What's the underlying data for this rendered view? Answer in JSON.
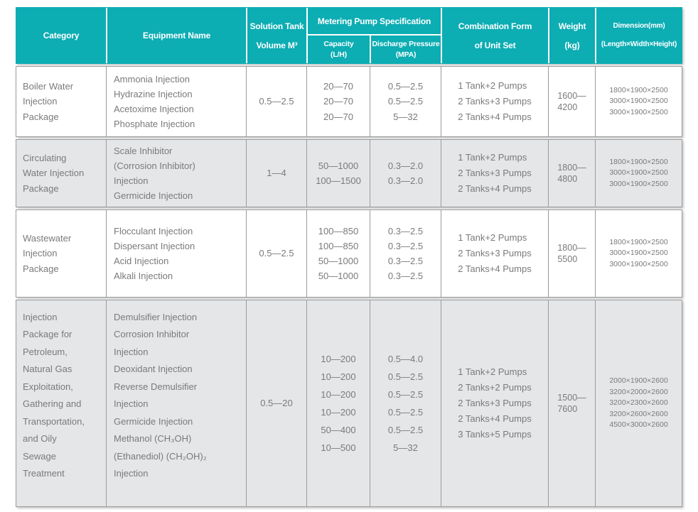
{
  "colors": {
    "header_bg": "#0cadb3",
    "header_text": "#ffffff",
    "alt_row_bg": "#e5e6e8",
    "border": "#9b9b9b",
    "body_text": "#7a7a7a"
  },
  "table": {
    "header": {
      "category": "Category",
      "equipment_name": "Equipment Name",
      "solution_tank_line1": "Solution Tank",
      "solution_tank_line2": "Volume M³",
      "pump_spec": "Metering Pump Specification",
      "capacity_line1": "Capacity",
      "capacity_line2": "(L/H)",
      "pressure_line1": "Discharge Pressure",
      "pressure_line2": "(MPA)",
      "combination_line1": "Combination Form",
      "combination_line2": "of Unit Set",
      "weight_line1": "Weight",
      "weight_line2": "(kg)",
      "dimension_line1": "Dimension(mm)",
      "dimension_line2": "(Length×Width×Height)"
    },
    "rows": [
      {
        "category_lines": [
          "Boiler Water",
          "Injection",
          "Package"
        ],
        "equipment_lines": [
          "Ammonia Injection",
          "Hydrazine Injection",
          "Acetoxime Injection",
          "Phosphate Injection"
        ],
        "tank_volume": "0.5—2.5",
        "capacity_lines": [
          "20—70",
          "20—70",
          "20—70"
        ],
        "pressure_lines": [
          "0.5—2.5",
          "0.5—2.5",
          "5—32"
        ],
        "combination_lines": [
          "1 Tank+2 Pumps",
          "2 Tanks+3 Pumps",
          "2 Tanks+4 Pumps"
        ],
        "weight_lines": [
          "1600—",
          "4200"
        ],
        "dimension_lines": [
          "1800×1900×2500",
          "3000×1900×2500",
          "3000×1900×2500"
        ]
      },
      {
        "category_lines": [
          "Circulating",
          "Water Injection",
          " Package"
        ],
        "equipment_lines": [
          "Scale Inhibitor",
          " (Corrosion Inhibitor)",
          " Injection",
          "Germicide Injection"
        ],
        "tank_volume": "1—4",
        "capacity_lines": [
          "50—1000",
          "100—1500"
        ],
        "pressure_lines": [
          "0.3—2.0",
          "0.3—2.0"
        ],
        "combination_lines": [
          "1 Tank+2 Pumps",
          "2 Tanks+3 Pumps",
          "2 Tanks+4 Pumps"
        ],
        "weight_lines": [
          "1800—",
          "4800"
        ],
        "dimension_lines": [
          "1800×1900×2500",
          "3000×1900×2500",
          "3000×1900×2500"
        ]
      },
      {
        "category_lines": [
          "Wastewater",
          "Injection",
          "Package"
        ],
        "equipment_lines": [
          "Flocculant Injection",
          "Dispersant Injection",
          "Acid Injection",
          "Alkali Injection"
        ],
        "tank_volume": "0.5—2.5",
        "capacity_lines": [
          "100—850",
          "100—850",
          "50—1000",
          "50—1000"
        ],
        "pressure_lines": [
          "0.3—2.5",
          "0.3—2.5",
          "0.3—2.5",
          "0.3—2.5"
        ],
        "combination_lines": [
          "1 Tank+2 Pumps",
          "2 Tanks+3 Pumps",
          "2 Tanks+4 Pumps"
        ],
        "weight_lines": [
          "1800—",
          "5500"
        ],
        "dimension_lines": [
          "1800×1900×2500",
          "3000×1900×2500",
          "3000×1900×2500"
        ]
      },
      {
        "category_lines": [
          "Injection",
          "Package for",
          "Petroleum,",
          "Natural Gas",
          "Exploitation,",
          "Gathering and",
          "Transportation,",
          "and Oily",
          "Sewage",
          "Treatment"
        ],
        "equipment_lines": [
          "Demulsifier Injection",
          "Corrosion Inhibitor",
          "Injection",
          "Deoxidant Injection",
          "Reverse Demulsifier",
          "Injection",
          "Germicide Injection",
          "Methanol (CH₃OH)",
          "(Ethanediol) (CH₂OH)₂",
          "Injection"
        ],
        "tank_volume": "0.5—20",
        "capacity_lines": [
          "10—200",
          "10—200",
          "10—200",
          "10—200",
          "50—400",
          "10—500"
        ],
        "pressure_lines": [
          "0.5—4.0",
          "0.5—2.5",
          "0.5—2.5",
          "0.5—2.5",
          "0.5—2.5",
          "5—32"
        ],
        "combination_lines": [
          "1 Tank+2 Pumps",
          "2 Tanks+2 Pumps",
          "2 Tanks+3 Pumps",
          "2 Tanks+4 Pumps",
          "3 Tanks+5 Pumps"
        ],
        "weight_lines": [
          "1500—",
          "7600"
        ],
        "dimension_lines": [
          "2000×1900×2600",
          "3200×2000×2600",
          "3200×2300×2600",
          "3200×2600×2600",
          "4500×3000×2600"
        ]
      }
    ]
  }
}
